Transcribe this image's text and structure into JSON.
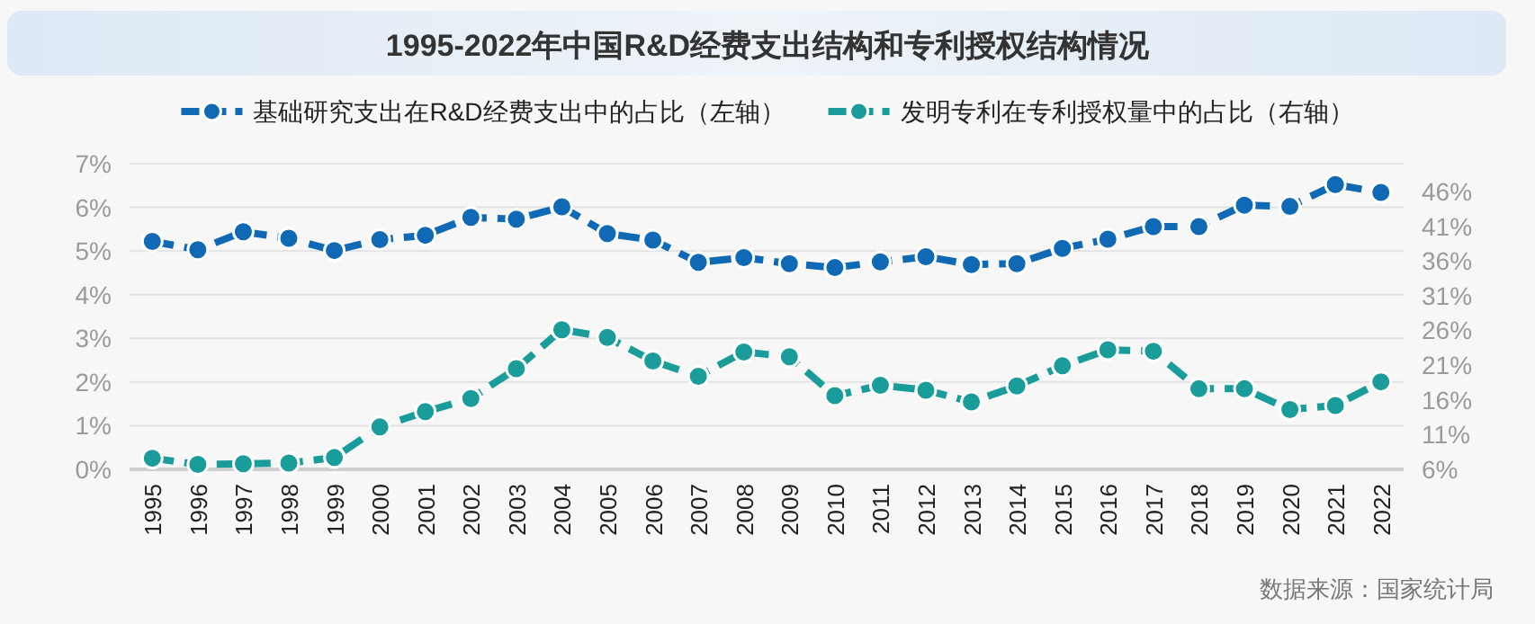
{
  "chart_data": {
    "type": "line",
    "title": "1995-2022年中国R&D经费支出结构和专利授权结构情况",
    "categories": [
      "1995",
      "1996",
      "1997",
      "1998",
      "1999",
      "2000",
      "2001",
      "2002",
      "2003",
      "2004",
      "2005",
      "2006",
      "2007",
      "2008",
      "2009",
      "2010",
      "2011",
      "2012",
      "2013",
      "2014",
      "2015",
      "2016",
      "2017",
      "2018",
      "2019",
      "2020",
      "2021",
      "2022"
    ],
    "series": [
      {
        "name": "基础研究支出在R&D经费支出中的占比（左轴）",
        "color": "#0f69b4",
        "values": [
          5.22,
          5.03,
          5.44,
          5.29,
          5.01,
          5.26,
          5.36,
          5.77,
          5.73,
          6.01,
          5.4,
          5.25,
          4.74,
          4.85,
          4.71,
          4.62,
          4.75,
          4.87,
          4.69,
          4.71,
          5.06,
          5.27,
          5.56,
          5.56,
          6.05,
          6.02,
          6.52,
          6.34
        ]
      },
      {
        "name": "发明专利在专利授权量中的占比（右轴）",
        "color": "#1a9c9a",
        "axis": "y2",
        "values": [
          7.6,
          6.7,
          6.8,
          6.9,
          7.7,
          12.1,
          14.3,
          16.2,
          20.5,
          26.1,
          25.0,
          21.6,
          19.4,
          22.9,
          22.2,
          16.6,
          18.1,
          17.4,
          15.7,
          18.0,
          20.9,
          23.2,
          23.0,
          17.6,
          17.6,
          14.6,
          15.2,
          18.6
        ]
      }
    ],
    "ylim": [
      0,
      7
    ],
    "yticks": [
      {
        "value": 0,
        "label": "0%"
      },
      {
        "value": 1,
        "label": "1%"
      },
      {
        "value": 2,
        "label": "2%"
      },
      {
        "value": 3,
        "label": "3%"
      },
      {
        "value": 4,
        "label": "4%"
      },
      {
        "value": 5,
        "label": "5%"
      },
      {
        "value": 6,
        "label": "6%"
      },
      {
        "value": 7,
        "label": "7%"
      }
    ],
    "y2lim": [
      6,
      50
    ],
    "y2ticks": [
      {
        "value": 6,
        "label": "6%"
      },
      {
        "value": 11,
        "label": "11%"
      },
      {
        "value": 16,
        "label": "16%"
      },
      {
        "value": 21,
        "label": "21%"
      },
      {
        "value": 26,
        "label": "26%"
      },
      {
        "value": 31,
        "label": "31%"
      },
      {
        "value": 36,
        "label": "36%"
      },
      {
        "value": 41,
        "label": "41%"
      },
      {
        "value": 46,
        "label": "46%"
      }
    ],
    "grid": "y",
    "legend": "top",
    "marker": "circle",
    "line_style": "dashed",
    "annotations": [
      "数据来源：国家统计局"
    ]
  }
}
